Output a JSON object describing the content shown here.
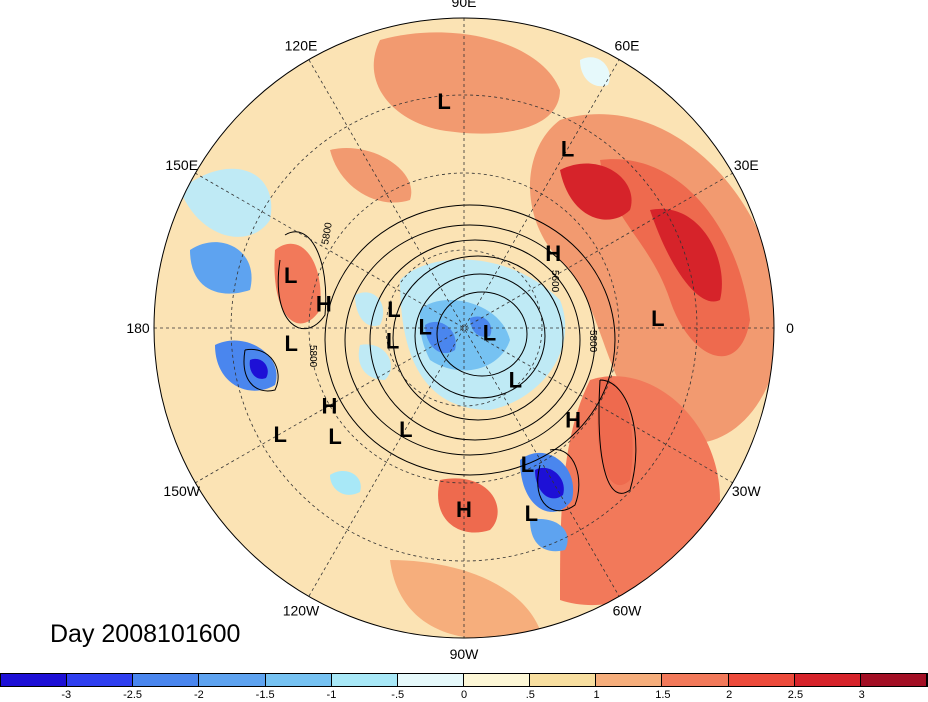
{
  "title": "Day 2008101600",
  "longitude_labels": [
    {
      "text": "90E",
      "angle": 90
    },
    {
      "text": "60E",
      "angle": 60
    },
    {
      "text": "30E",
      "angle": 30
    },
    {
      "text": "0",
      "angle": 0
    },
    {
      "text": "30W",
      "angle": -30
    },
    {
      "text": "60W",
      "angle": -60
    },
    {
      "text": "90W",
      "angle": -90
    },
    {
      "text": "120W",
      "angle": -120
    },
    {
      "text": "150W",
      "angle": -150
    },
    {
      "text": "180",
      "angle": 180
    },
    {
      "text": "150E",
      "angle": 150
    },
    {
      "text": "120E",
      "angle": 120
    }
  ],
  "pressure_centers": [
    {
      "type": "L",
      "lon": 95,
      "lat": 2
    },
    {
      "type": "L",
      "lon": 60,
      "lat": 10
    },
    {
      "type": "H",
      "lon": 40,
      "lat": 45
    },
    {
      "type": "L",
      "lon": 3,
      "lat": 15
    },
    {
      "type": "L",
      "lon": 163,
      "lat": 20
    },
    {
      "type": "H",
      "lon": 170,
      "lat": 35
    },
    {
      "type": "L",
      "lon": 165,
      "lat": 62
    },
    {
      "type": "L",
      "lon": -175,
      "lat": 23
    },
    {
      "type": "L",
      "lon": -170,
      "lat": 62
    },
    {
      "type": "L",
      "lon": 178,
      "lat": 75
    },
    {
      "type": "L",
      "lon": -120,
      "lat": 45
    },
    {
      "type": "H",
      "lon": -150,
      "lat": 30
    },
    {
      "type": "L",
      "lon": -140,
      "lat": 25
    },
    {
      "type": "L",
      "lon": -150,
      "lat": 8
    },
    {
      "type": "H",
      "lon": -90,
      "lat": 20
    },
    {
      "type": "L",
      "lon": -65,
      "lat": 32
    },
    {
      "type": "L",
      "lon": -70,
      "lat": 14
    },
    {
      "type": "H",
      "lon": -40,
      "lat": 35
    },
    {
      "type": "L",
      "lon": -45,
      "lat": 62
    },
    {
      "type": "L",
      "lon": -10,
      "lat": 80
    }
  ],
  "contour_labels": [
    "5800",
    "5800",
    "5600",
    "5800"
  ],
  "colorbar": {
    "colors": [
      "#1d10d6",
      "#2f3ff0",
      "#4a86ee",
      "#5ea3f0",
      "#76c2f2",
      "#a8e8f7",
      "#e6f9fb",
      "#fdf7d6",
      "#f8dfa0",
      "#f6ae7c",
      "#f2795a",
      "#ec4a3b",
      "#d6232a",
      "#a30f24"
    ],
    "ticks": [
      "-3",
      "-2.5",
      "-2",
      "-1.5",
      "-1",
      "-.5",
      "0",
      ".5",
      "1",
      "1.5",
      "2",
      "2.5",
      "3"
    ]
  }
}
